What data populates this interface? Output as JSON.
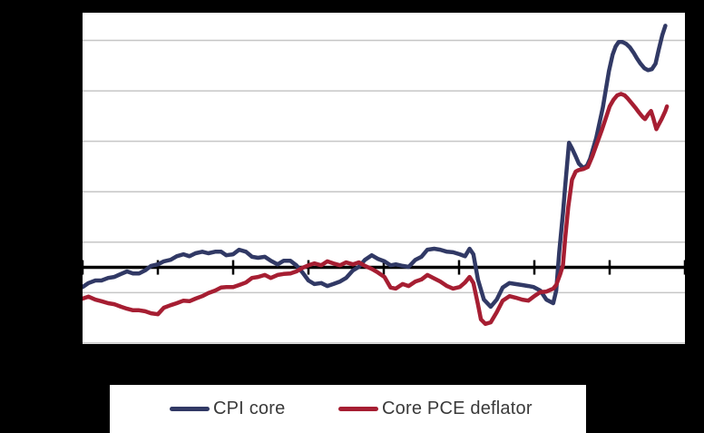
{
  "canvas": {
    "background": "#000000",
    "plot_background": "#ffffff",
    "legend_background": "#ffffff",
    "legend_text_color": "#3a3a3a"
  },
  "chart_data": {
    "type": "line",
    "title": "",
    "xlabel": "",
    "ylabel": "",
    "x_tick_labels": [],
    "y_tick_labels": [],
    "xlim": [
      0,
      8
    ],
    "ylim": [
      -1.52,
      5.05
    ],
    "x_ticks": [
      0,
      1,
      2,
      3,
      4,
      5,
      6,
      7,
      8
    ],
    "y_gridlines": [
      4.5,
      3.5,
      2.5,
      1.5,
      0.5,
      -0.5,
      -1.5
    ],
    "zero_line": 0,
    "grid": true,
    "grid_color": "#c6c6c6",
    "axis_color": "#000000",
    "legend_position": "bottom-box",
    "note": "no numeric axis labels are rendered; y values are in gridline units relative to the bold zero axis, x in tick-interval units",
    "series": [
      {
        "name": "CPI core",
        "color": "#313965",
        "points": [
          [
            0,
            -0.39
          ],
          [
            0.08,
            -0.31
          ],
          [
            0.17,
            -0.26
          ],
          [
            0.25,
            -0.26
          ],
          [
            0.34,
            -0.21
          ],
          [
            0.42,
            -0.19
          ],
          [
            0.51,
            -0.13
          ],
          [
            0.59,
            -0.08
          ],
          [
            0.67,
            -0.12
          ],
          [
            0.75,
            -0.12
          ],
          [
            0.83,
            -0.06
          ],
          [
            0.91,
            0.03
          ],
          [
            1,
            0.06
          ],
          [
            1.08,
            0.12
          ],
          [
            1.17,
            0.15
          ],
          [
            1.25,
            0.22
          ],
          [
            1.34,
            0.26
          ],
          [
            1.42,
            0.22
          ],
          [
            1.5,
            0.28
          ],
          [
            1.59,
            0.31
          ],
          [
            1.67,
            0.28
          ],
          [
            1.76,
            0.31
          ],
          [
            1.84,
            0.31
          ],
          [
            1.91,
            0.24
          ],
          [
            2,
            0.26
          ],
          [
            2.08,
            0.35
          ],
          [
            2.17,
            0.31
          ],
          [
            2.25,
            0.21
          ],
          [
            2.33,
            0.19
          ],
          [
            2.42,
            0.21
          ],
          [
            2.5,
            0.13
          ],
          [
            2.59,
            0.06
          ],
          [
            2.67,
            0.13
          ],
          [
            2.76,
            0.13
          ],
          [
            2.84,
            0.04
          ],
          [
            2.92,
            -0.1
          ],
          [
            3,
            -0.26
          ],
          [
            3.08,
            -0.33
          ],
          [
            3.17,
            -0.31
          ],
          [
            3.25,
            -0.37
          ],
          [
            3.33,
            -0.33
          ],
          [
            3.42,
            -0.28
          ],
          [
            3.5,
            -0.21
          ],
          [
            3.59,
            -0.06
          ],
          [
            3.67,
            0.01
          ],
          [
            3.75,
            0.15
          ],
          [
            3.84,
            0.24
          ],
          [
            3.92,
            0.17
          ],
          [
            4.01,
            0.12
          ],
          [
            4.09,
            0.04
          ],
          [
            4.16,
            0.06
          ],
          [
            4.25,
            0.03
          ],
          [
            4.33,
            0.01
          ],
          [
            4.42,
            0.15
          ],
          [
            4.5,
            0.21
          ],
          [
            4.58,
            0.35
          ],
          [
            4.67,
            0.37
          ],
          [
            4.75,
            0.35
          ],
          [
            4.84,
            0.31
          ],
          [
            4.92,
            0.3
          ],
          [
            5.01,
            0.26
          ],
          [
            5.08,
            0.22
          ],
          [
            5.14,
            0.37
          ],
          [
            5.19,
            0.26
          ],
          [
            5.25,
            -0.24
          ],
          [
            5.33,
            -0.64
          ],
          [
            5.42,
            -0.78
          ],
          [
            5.5,
            -0.64
          ],
          [
            5.58,
            -0.4
          ],
          [
            5.67,
            -0.31
          ],
          [
            5.75,
            -0.33
          ],
          [
            5.84,
            -0.35
          ],
          [
            5.92,
            -0.37
          ],
          [
            5.99,
            -0.39
          ],
          [
            6.08,
            -0.46
          ],
          [
            6.16,
            -0.64
          ],
          [
            6.25,
            -0.71
          ],
          [
            6.29,
            -0.46
          ],
          [
            6.33,
            0.3
          ],
          [
            6.38,
            1.07
          ],
          [
            6.41,
            1.61
          ],
          [
            6.46,
            2.47
          ],
          [
            6.5,
            2.36
          ],
          [
            6.55,
            2.2
          ],
          [
            6.59,
            2.06
          ],
          [
            6.65,
            1.97
          ],
          [
            6.7,
            2.02
          ],
          [
            6.74,
            2.15
          ],
          [
            6.82,
            2.56
          ],
          [
            6.91,
            3.17
          ],
          [
            6.99,
            3.89
          ],
          [
            7.04,
            4.22
          ],
          [
            7.08,
            4.38
          ],
          [
            7.12,
            4.47
          ],
          [
            7.17,
            4.47
          ],
          [
            7.22,
            4.43
          ],
          [
            7.27,
            4.36
          ],
          [
            7.32,
            4.25
          ],
          [
            7.36,
            4.15
          ],
          [
            7.41,
            4.04
          ],
          [
            7.46,
            3.95
          ],
          [
            7.51,
            3.91
          ],
          [
            7.56,
            3.93
          ],
          [
            7.61,
            4.04
          ],
          [
            7.65,
            4.31
          ],
          [
            7.7,
            4.61
          ],
          [
            7.74,
            4.79
          ]
        ]
      },
      {
        "name": "Core PCE deflator",
        "color": "#a61e32",
        "points": [
          [
            0,
            -0.62
          ],
          [
            0.08,
            -0.58
          ],
          [
            0.17,
            -0.64
          ],
          [
            0.25,
            -0.67
          ],
          [
            0.34,
            -0.71
          ],
          [
            0.42,
            -0.73
          ],
          [
            0.51,
            -0.78
          ],
          [
            0.59,
            -0.82
          ],
          [
            0.67,
            -0.85
          ],
          [
            0.75,
            -0.85
          ],
          [
            0.83,
            -0.87
          ],
          [
            0.91,
            -0.91
          ],
          [
            1,
            -0.93
          ],
          [
            1.08,
            -0.8
          ],
          [
            1.17,
            -0.75
          ],
          [
            1.25,
            -0.71
          ],
          [
            1.34,
            -0.66
          ],
          [
            1.42,
            -0.67
          ],
          [
            1.5,
            -0.62
          ],
          [
            1.59,
            -0.57
          ],
          [
            1.67,
            -0.51
          ],
          [
            1.76,
            -0.46
          ],
          [
            1.84,
            -0.4
          ],
          [
            1.91,
            -0.39
          ],
          [
            2,
            -0.39
          ],
          [
            2.08,
            -0.35
          ],
          [
            2.17,
            -0.3
          ],
          [
            2.25,
            -0.21
          ],
          [
            2.33,
            -0.19
          ],
          [
            2.42,
            -0.15
          ],
          [
            2.5,
            -0.21
          ],
          [
            2.59,
            -0.15
          ],
          [
            2.67,
            -0.13
          ],
          [
            2.76,
            -0.12
          ],
          [
            2.84,
            -0.08
          ],
          [
            2.92,
            -0.01
          ],
          [
            3,
            0.04
          ],
          [
            3.08,
            0.08
          ],
          [
            3.17,
            0.04
          ],
          [
            3.25,
            0.12
          ],
          [
            3.33,
            0.08
          ],
          [
            3.42,
            0.04
          ],
          [
            3.5,
            0.1
          ],
          [
            3.59,
            0.06
          ],
          [
            3.67,
            0.1
          ],
          [
            3.75,
            0.03
          ],
          [
            3.84,
            -0.03
          ],
          [
            3.92,
            -0.1
          ],
          [
            4.01,
            -0.19
          ],
          [
            4.09,
            -0.4
          ],
          [
            4.16,
            -0.42
          ],
          [
            4.25,
            -0.33
          ],
          [
            4.33,
            -0.37
          ],
          [
            4.42,
            -0.28
          ],
          [
            4.5,
            -0.24
          ],
          [
            4.58,
            -0.15
          ],
          [
            4.67,
            -0.22
          ],
          [
            4.75,
            -0.28
          ],
          [
            4.84,
            -0.37
          ],
          [
            4.92,
            -0.42
          ],
          [
            5.01,
            -0.39
          ],
          [
            5.08,
            -0.3
          ],
          [
            5.14,
            -0.19
          ],
          [
            5.19,
            -0.31
          ],
          [
            5.25,
            -0.73
          ],
          [
            5.29,
            -1.03
          ],
          [
            5.35,
            -1.12
          ],
          [
            5.42,
            -1.09
          ],
          [
            5.5,
            -0.89
          ],
          [
            5.58,
            -0.66
          ],
          [
            5.67,
            -0.57
          ],
          [
            5.75,
            -0.6
          ],
          [
            5.84,
            -0.64
          ],
          [
            5.92,
            -0.66
          ],
          [
            5.99,
            -0.58
          ],
          [
            6.08,
            -0.49
          ],
          [
            6.16,
            -0.48
          ],
          [
            6.25,
            -0.42
          ],
          [
            6.29,
            -0.35
          ],
          [
            6.34,
            -0.15
          ],
          [
            6.38,
            0.04
          ],
          [
            6.41,
            0.58
          ],
          [
            6.45,
            1.2
          ],
          [
            6.5,
            1.74
          ],
          [
            6.55,
            1.9
          ],
          [
            6.59,
            1.93
          ],
          [
            6.65,
            1.95
          ],
          [
            6.71,
            1.99
          ],
          [
            6.77,
            2.2
          ],
          [
            6.83,
            2.45
          ],
          [
            6.9,
            2.74
          ],
          [
            6.96,
            3.01
          ],
          [
            7,
            3.19
          ],
          [
            7.05,
            3.32
          ],
          [
            7.1,
            3.41
          ],
          [
            7.15,
            3.44
          ],
          [
            7.2,
            3.41
          ],
          [
            7.24,
            3.35
          ],
          [
            7.29,
            3.26
          ],
          [
            7.34,
            3.17
          ],
          [
            7.39,
            3.07
          ],
          [
            7.44,
            2.98
          ],
          [
            7.47,
            2.94
          ],
          [
            7.51,
            3.03
          ],
          [
            7.55,
            3.1
          ],
          [
            7.58,
            2.96
          ],
          [
            7.62,
            2.74
          ],
          [
            7.65,
            2.83
          ],
          [
            7.69,
            2.94
          ],
          [
            7.74,
            3.1
          ],
          [
            7.76,
            3.19
          ]
        ]
      }
    ]
  }
}
